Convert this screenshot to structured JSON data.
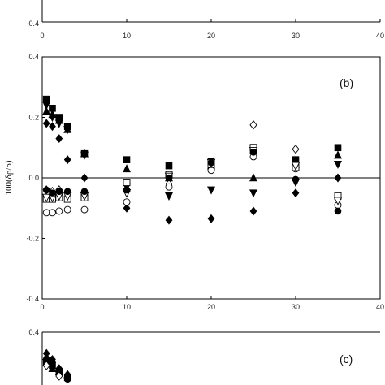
{
  "chart_data": [
    {
      "panel": "top (partial)",
      "type": "scatter",
      "panel_label": "",
      "xlim": [
        0,
        40
      ],
      "x_ticks": [
        "0",
        "10",
        "20",
        "30",
        "40"
      ],
      "y_ticks_visible": [
        "-0.4"
      ],
      "series": []
    },
    {
      "panel": "b",
      "type": "scatter",
      "panel_label": "(b)",
      "ylabel": "100(δρ/ρ)",
      "xlabel": "",
      "xlim": [
        0,
        40
      ],
      "ylim": [
        -0.4,
        0.4
      ],
      "x_ticks": [
        "0",
        "10",
        "20",
        "30",
        "40"
      ],
      "y_ticks": [
        "0.4",
        "0.2",
        "0.0",
        "-0.2",
        "-0.4"
      ],
      "zero_line": true,
      "grid": false,
      "series": [
        {
          "marker": "filled-square",
          "points": [
            [
              0.5,
              0.26
            ],
            [
              1.2,
              0.23
            ],
            [
              2,
              0.2
            ],
            [
              3,
              0.17
            ],
            [
              5,
              0.08
            ],
            [
              10,
              0.06
            ],
            [
              15,
              0.04
            ],
            [
              20,
              0.055
            ],
            [
              25,
              0.09
            ],
            [
              30,
              0.06
            ],
            [
              35,
              0.1
            ]
          ]
        },
        {
          "marker": "filled-triangle-up",
          "points": [
            [
              0.5,
              0.22
            ],
            [
              1.2,
              0.21
            ],
            [
              2,
              0.19
            ],
            [
              3,
              0.16
            ],
            [
              5,
              0.08
            ],
            [
              10,
              0.03
            ],
            [
              15,
              0.0
            ],
            [
              20,
              0.04
            ],
            [
              25,
              0.0
            ],
            [
              30,
              0.045
            ],
            [
              35,
              0.075
            ]
          ]
        },
        {
          "marker": "filled-triangle-down",
          "points": [
            [
              0.5,
              0.24
            ],
            [
              1.2,
              0.2
            ],
            [
              2,
              0.18
            ],
            [
              3,
              0.16
            ],
            [
              5,
              0.075
            ],
            [
              10,
              -0.03
            ],
            [
              15,
              -0.06
            ],
            [
              20,
              -0.04
            ],
            [
              25,
              -0.05
            ],
            [
              30,
              -0.015
            ],
            [
              35,
              0.045
            ]
          ]
        },
        {
          "marker": "filled-diamond",
          "points": [
            [
              0.5,
              0.18
            ],
            [
              1.2,
              0.17
            ],
            [
              2,
              0.13
            ],
            [
              3,
              0.06
            ],
            [
              5,
              0.0
            ],
            [
              10,
              -0.1
            ],
            [
              15,
              -0.14
            ],
            [
              20,
              -0.135
            ],
            [
              25,
              -0.11
            ],
            [
              30,
              -0.05
            ],
            [
              35,
              0.0
            ]
          ]
        },
        {
          "marker": "open-diamond",
          "points": [
            [
              0.5,
              -0.04
            ],
            [
              1.2,
              -0.045
            ],
            [
              2,
              -0.04
            ],
            [
              3,
              -0.05
            ],
            [
              5,
              -0.06
            ],
            [
              10,
              -0.045
            ],
            [
              15,
              -0.02
            ],
            [
              20,
              0.03
            ],
            [
              25,
              0.175
            ],
            [
              30,
              0.095
            ],
            [
              35,
              -0.065
            ]
          ]
        },
        {
          "marker": "open-circle",
          "points": [
            [
              0.5,
              -0.115
            ],
            [
              1.2,
              -0.115
            ],
            [
              2,
              -0.11
            ],
            [
              3,
              -0.105
            ],
            [
              5,
              -0.105
            ],
            [
              10,
              -0.08
            ],
            [
              15,
              -0.03
            ],
            [
              20,
              0.025
            ],
            [
              25,
              0.07
            ],
            [
              30,
              0.03
            ],
            [
              35,
              -0.09
            ]
          ]
        },
        {
          "marker": "open-square",
          "points": [
            [
              0.5,
              -0.07
            ],
            [
              1.2,
              -0.07
            ],
            [
              2,
              -0.065
            ],
            [
              3,
              -0.07
            ],
            [
              5,
              -0.065
            ],
            [
              10,
              -0.015
            ],
            [
              15,
              0.01
            ],
            [
              20,
              0.045
            ],
            [
              25,
              0.1
            ],
            [
              30,
              0.035
            ],
            [
              35,
              -0.06
            ]
          ]
        },
        {
          "marker": "open-triangle-down",
          "points": [
            [
              0.5,
              -0.065
            ],
            [
              1.2,
              -0.065
            ],
            [
              2,
              -0.06
            ],
            [
              3,
              -0.06
            ],
            [
              5,
              -0.06
            ],
            [
              10,
              -0.05
            ],
            [
              15,
              0.005
            ],
            [
              20,
              0.05
            ],
            [
              25,
              0.09
            ],
            [
              30,
              0.04
            ],
            [
              35,
              -0.075
            ]
          ]
        },
        {
          "marker": "filled-circle",
          "points": [
            [
              0.5,
              -0.04
            ],
            [
              1.2,
              -0.05
            ],
            [
              2,
              -0.045
            ],
            [
              3,
              -0.045
            ],
            [
              5,
              -0.045
            ],
            [
              10,
              -0.04
            ],
            [
              15,
              0.0
            ],
            [
              20,
              0.05
            ],
            [
              25,
              0.085
            ],
            [
              30,
              -0.005
            ],
            [
              35,
              -0.11
            ]
          ]
        }
      ]
    },
    {
      "panel": "c (partial)",
      "type": "scatter",
      "panel_label": "(c)",
      "xlim": [
        0,
        40
      ],
      "ylim": [
        -0.4,
        0.4
      ],
      "y_ticks_visible": [
        "0.4"
      ],
      "series": [
        {
          "marker": "filled-diamond",
          "points": [
            [
              0.5,
              0.33
            ],
            [
              1.2,
              0.31
            ],
            [
              2,
              0.28
            ],
            [
              3,
              0.26
            ]
          ]
        },
        {
          "marker": "filled-square",
          "points": [
            [
              0.5,
              0.3
            ],
            [
              1.2,
              0.29
            ],
            [
              2,
              0.27
            ],
            [
              3,
              0.25
            ]
          ]
        },
        {
          "marker": "filled-triangle-up",
          "points": [
            [
              0.5,
              0.32
            ],
            [
              1.2,
              0.28
            ],
            [
              2,
              0.27
            ],
            [
              3,
              0.26
            ]
          ]
        },
        {
          "marker": "filled-circle",
          "points": [
            [
              0.5,
              0.31
            ],
            [
              1.2,
              0.3
            ],
            [
              2,
              0.26
            ],
            [
              3,
              0.245
            ]
          ]
        },
        {
          "marker": "open-diamond",
          "points": [
            [
              0.5,
              0.29
            ],
            [
              2,
              0.255
            ]
          ]
        }
      ]
    }
  ]
}
